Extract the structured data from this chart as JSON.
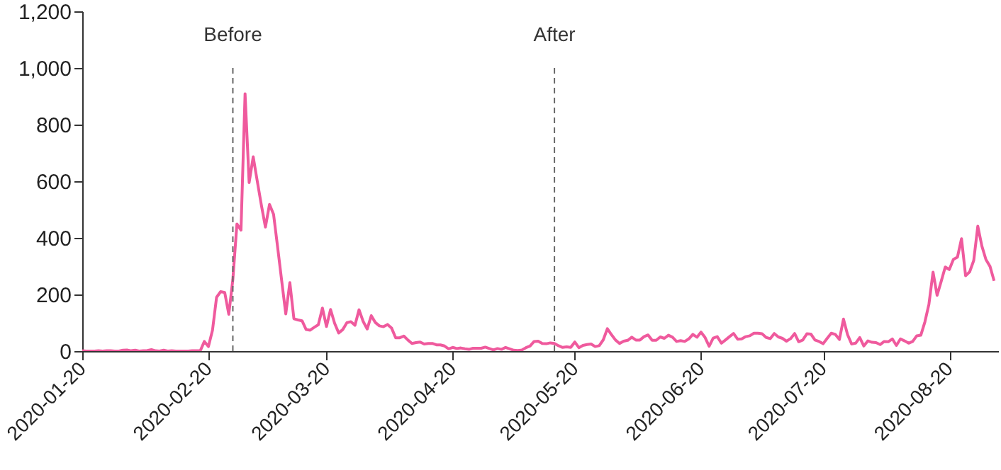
{
  "chart_data": {
    "type": "line",
    "x": [
      "2020-01-20",
      "2020-01-21",
      "2020-01-22",
      "2020-01-23",
      "2020-01-24",
      "2020-01-25",
      "2020-01-26",
      "2020-01-27",
      "2020-01-28",
      "2020-01-29",
      "2020-01-30",
      "2020-01-31",
      "2020-02-01",
      "2020-02-02",
      "2020-02-03",
      "2020-02-04",
      "2020-02-05",
      "2020-02-06",
      "2020-02-07",
      "2020-02-08",
      "2020-02-09",
      "2020-02-10",
      "2020-02-11",
      "2020-02-12",
      "2020-02-13",
      "2020-02-14",
      "2020-02-15",
      "2020-02-16",
      "2020-02-17",
      "2020-02-18",
      "2020-02-19",
      "2020-02-20",
      "2020-02-21",
      "2020-02-22",
      "2020-02-23",
      "2020-02-24",
      "2020-02-25",
      "2020-02-26",
      "2020-02-27",
      "2020-02-28",
      "2020-02-29",
      "2020-03-01",
      "2020-03-02",
      "2020-03-03",
      "2020-03-04",
      "2020-03-05",
      "2020-03-06",
      "2020-03-07",
      "2020-03-08",
      "2020-03-09",
      "2020-03-10",
      "2020-03-11",
      "2020-03-12",
      "2020-03-13",
      "2020-03-14",
      "2020-03-15",
      "2020-03-16",
      "2020-03-17",
      "2020-03-18",
      "2020-03-19",
      "2020-03-20",
      "2020-03-21",
      "2020-03-22",
      "2020-03-23",
      "2020-03-24",
      "2020-03-25",
      "2020-03-26",
      "2020-03-27",
      "2020-03-28",
      "2020-03-29",
      "2020-03-30",
      "2020-03-31",
      "2020-04-01",
      "2020-04-02",
      "2020-04-03",
      "2020-04-04",
      "2020-04-05",
      "2020-04-06",
      "2020-04-07",
      "2020-04-08",
      "2020-04-09",
      "2020-04-10",
      "2020-04-11",
      "2020-04-12",
      "2020-04-13",
      "2020-04-14",
      "2020-04-15",
      "2020-04-16",
      "2020-04-17",
      "2020-04-18",
      "2020-04-19",
      "2020-04-20",
      "2020-04-21",
      "2020-04-22",
      "2020-04-23",
      "2020-04-24",
      "2020-04-25",
      "2020-04-26",
      "2020-04-27",
      "2020-04-28",
      "2020-04-29",
      "2020-04-30",
      "2020-05-01",
      "2020-05-02",
      "2020-05-03",
      "2020-05-04",
      "2020-05-05",
      "2020-05-06",
      "2020-05-07",
      "2020-05-08",
      "2020-05-09",
      "2020-05-10",
      "2020-05-11",
      "2020-05-12",
      "2020-05-13",
      "2020-05-14",
      "2020-05-15",
      "2020-05-16",
      "2020-05-17",
      "2020-05-18",
      "2020-05-19",
      "2020-05-20",
      "2020-05-21",
      "2020-05-22",
      "2020-05-23",
      "2020-05-24",
      "2020-05-25",
      "2020-05-26",
      "2020-05-27",
      "2020-05-28",
      "2020-05-29",
      "2020-05-30",
      "2020-05-31",
      "2020-06-01",
      "2020-06-02",
      "2020-06-03",
      "2020-06-04",
      "2020-06-05",
      "2020-06-06",
      "2020-06-07",
      "2020-06-08",
      "2020-06-09",
      "2020-06-10",
      "2020-06-11",
      "2020-06-12",
      "2020-06-13",
      "2020-06-14",
      "2020-06-15",
      "2020-06-16",
      "2020-06-17",
      "2020-06-18",
      "2020-06-19",
      "2020-06-20",
      "2020-06-21",
      "2020-06-22",
      "2020-06-23",
      "2020-06-24",
      "2020-06-25",
      "2020-06-26",
      "2020-06-27",
      "2020-06-28",
      "2020-06-29",
      "2020-06-30",
      "2020-07-01",
      "2020-07-02",
      "2020-07-03",
      "2020-07-04",
      "2020-07-05",
      "2020-07-06",
      "2020-07-07",
      "2020-07-08",
      "2020-07-09",
      "2020-07-10",
      "2020-07-11",
      "2020-07-12",
      "2020-07-13",
      "2020-07-14",
      "2020-07-15",
      "2020-07-16",
      "2020-07-17",
      "2020-07-18",
      "2020-07-19",
      "2020-07-20",
      "2020-07-21",
      "2020-07-22",
      "2020-07-23",
      "2020-07-24",
      "2020-07-25",
      "2020-07-26",
      "2020-07-27",
      "2020-07-28",
      "2020-07-29",
      "2020-07-30",
      "2020-07-31",
      "2020-08-01",
      "2020-08-02",
      "2020-08-03",
      "2020-08-04",
      "2020-08-05",
      "2020-08-06",
      "2020-08-07",
      "2020-08-08",
      "2020-08-09",
      "2020-08-10",
      "2020-08-11",
      "2020-08-12",
      "2020-08-13",
      "2020-08-14",
      "2020-08-15",
      "2020-08-16",
      "2020-08-17",
      "2020-08-18",
      "2020-08-19",
      "2020-08-20",
      "2020-08-21",
      "2020-08-22",
      "2020-08-23",
      "2020-08-24",
      "2020-08-25",
      "2020-08-26",
      "2020-08-27",
      "2020-08-28",
      "2020-08-29",
      "2020-08-30",
      "2020-08-31"
    ],
    "series": [
      {
        "color": "#ef5a9d",
        "values": [
          1,
          0,
          0,
          0,
          1,
          0,
          1,
          1,
          0,
          0,
          3,
          4,
          1,
          3,
          0,
          1,
          2,
          5,
          1,
          0,
          3,
          0,
          1,
          0,
          0,
          0,
          0,
          1,
          1,
          1,
          34,
          16,
          74,
          190,
          210,
          207,
          130,
          253,
          449,
          427,
          909,
          595,
          686,
          600,
          516,
          438,
          518,
          483,
          367,
          248,
          131,
          242,
          114,
          110,
          107,
          76,
          74,
          84,
          93,
          152,
          87,
          147,
          98,
          64,
          76,
          100,
          104,
          91,
          146,
          105,
          78,
          125,
          101,
          89,
          86,
          94,
          81,
          47,
          47,
          53,
          39,
          27,
          30,
          32,
          25,
          27,
          27,
          22,
          22,
          18,
          8,
          13,
          9,
          11,
          8,
          6,
          10,
          10,
          10,
          14,
          9,
          4,
          9,
          6,
          13,
          8,
          3,
          2,
          4,
          12,
          18,
          34,
          35,
          27,
          26,
          29,
          27,
          19,
          13,
          15,
          13,
          32,
          12,
          20,
          23,
          25,
          16,
          19,
          40,
          79,
          58,
          39,
          27,
          35,
          38,
          49,
          39,
          39,
          51,
          57,
          38,
          38,
          50,
          45,
          56,
          49,
          34,
          37,
          34,
          43,
          59,
          49,
          67,
          48,
          17,
          46,
          51,
          28,
          39,
          51,
          62,
          42,
          43,
          51,
          54,
          63,
          63,
          61,
          48,
          44,
          62,
          50,
          45,
          35,
          44,
          62,
          33,
          39,
          61,
          60,
          39,
          34,
          26,
          45,
          63,
          59,
          41,
          113,
          58,
          25,
          28,
          48,
          18,
          36,
          31,
          30,
          23,
          34,
          33,
          43,
          20,
          43,
          36,
          28,
          34,
          54,
          56,
          103,
          166,
          279,
          197,
          246,
          297,
          288,
          324,
          332,
          397,
          266,
          280,
          320,
          441,
          371,
          323,
          299,
          248
        ]
      }
    ],
    "xlim": [
      "2020-01-20",
      "2020-09-01"
    ],
    "xticks": [
      "2020-01-20",
      "2020-02-20",
      "2020-03-20",
      "2020-04-20",
      "2020-05-20",
      "2020-06-20",
      "2020-07-20",
      "2020-08-20"
    ],
    "ylim": [
      0,
      1200
    ],
    "yticks": [
      0,
      200,
      400,
      600,
      800,
      {
        "value": 1000,
        "label": "1,000"
      },
      {
        "value": 1200,
        "label": "1,200"
      }
    ],
    "ref_lines": [
      {
        "axis": "x",
        "value": "2020-02-26",
        "label": "Before",
        "color": "#666666",
        "line_style": "dashed"
      },
      {
        "axis": "x",
        "value": "2020-05-15",
        "label": "After",
        "color": "#666666",
        "line_style": "dashed"
      }
    ],
    "grid": false,
    "line_style": "solid",
    "marker": "none"
  }
}
